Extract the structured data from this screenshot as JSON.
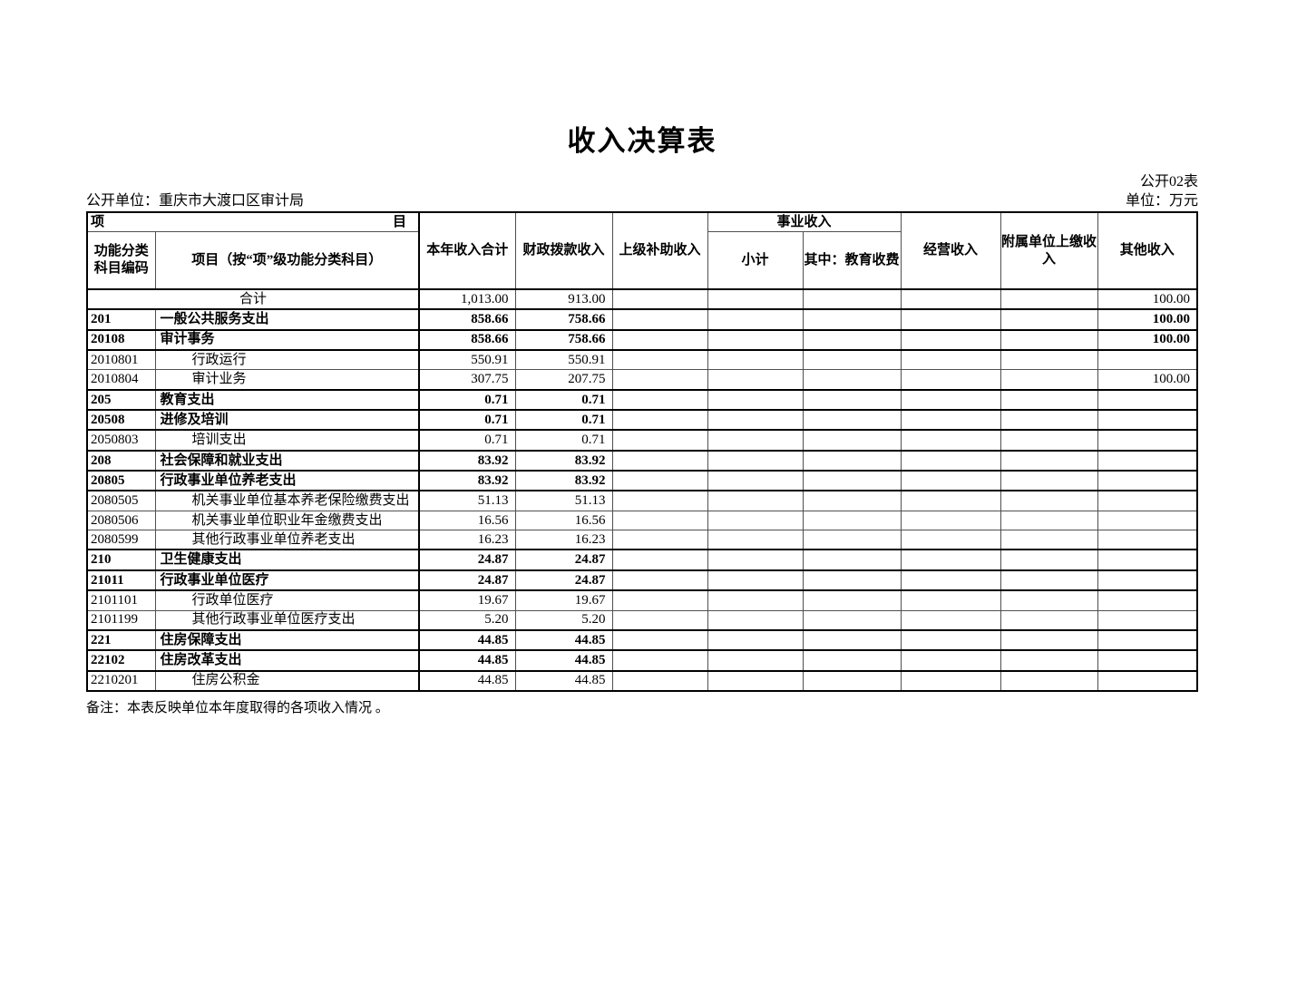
{
  "page": {
    "title": "收入决算表",
    "table_code": "公开02表",
    "publisher": "公开单位：重庆市大渡口区审计局",
    "unit": "单位：万元",
    "note": "备注：本表反映单位本年度取得的各项收入情况 。"
  },
  "table": {
    "header": {
      "item_left": "项",
      "item_right": "目",
      "code": "功能分类科目编码",
      "item_sub": "项目（按“项”级功能分类科目）",
      "annual_total": "本年收入合计",
      "fiscal": "财政拨款收入",
      "superior": "上级补助收入",
      "business_group": "事业收入",
      "subtotal": "小计",
      "education_fee": "其中：教育收费",
      "operating": "经营收入",
      "affiliated": "附属单位上缴收入",
      "other": "其他收入"
    },
    "rows": [
      {
        "code": "",
        "name": "合计",
        "style": "total",
        "values": [
          "1,013.00",
          "913.00",
          "",
          "",
          "",
          "",
          "",
          "100.00"
        ]
      },
      {
        "code": "201",
        "name": "一般公共服务支出",
        "style": "bold",
        "values": [
          "858.66",
          "758.66",
          "",
          "",
          "",
          "",
          "",
          "100.00"
        ]
      },
      {
        "code": "20108",
        "name": "审计事务",
        "style": "bold",
        "values": [
          "858.66",
          "758.66",
          "",
          "",
          "",
          "",
          "",
          "100.00"
        ]
      },
      {
        "code": "2010801",
        "name": "行政运行",
        "style": "detail",
        "values": [
          "550.91",
          "550.91",
          "",
          "",
          "",
          "",
          "",
          ""
        ]
      },
      {
        "code": "2010804",
        "name": "审计业务",
        "style": "detail",
        "values": [
          "307.75",
          "207.75",
          "",
          "",
          "",
          "",
          "",
          "100.00"
        ]
      },
      {
        "code": "205",
        "name": "教育支出",
        "style": "bold",
        "values": [
          "0.71",
          "0.71",
          "",
          "",
          "",
          "",
          "",
          ""
        ]
      },
      {
        "code": "20508",
        "name": "进修及培训",
        "style": "bold",
        "values": [
          "0.71",
          "0.71",
          "",
          "",
          "",
          "",
          "",
          ""
        ]
      },
      {
        "code": "2050803",
        "name": "培训支出",
        "style": "detail",
        "values": [
          "0.71",
          "0.71",
          "",
          "",
          "",
          "",
          "",
          ""
        ]
      },
      {
        "code": "208",
        "name": "社会保障和就业支出",
        "style": "bold",
        "values": [
          "83.92",
          "83.92",
          "",
          "",
          "",
          "",
          "",
          ""
        ]
      },
      {
        "code": "20805",
        "name": "行政事业单位养老支出",
        "style": "bold",
        "values": [
          "83.92",
          "83.92",
          "",
          "",
          "",
          "",
          "",
          ""
        ]
      },
      {
        "code": "2080505",
        "name": "机关事业单位基本养老保险缴费支出",
        "style": "detail",
        "values": [
          "51.13",
          "51.13",
          "",
          "",
          "",
          "",
          "",
          ""
        ]
      },
      {
        "code": "2080506",
        "name": "机关事业单位职业年金缴费支出",
        "style": "detail",
        "values": [
          "16.56",
          "16.56",
          "",
          "",
          "",
          "",
          "",
          ""
        ]
      },
      {
        "code": "2080599",
        "name": "其他行政事业单位养老支出",
        "style": "detail",
        "values": [
          "16.23",
          "16.23",
          "",
          "",
          "",
          "",
          "",
          ""
        ]
      },
      {
        "code": "210",
        "name": "卫生健康支出",
        "style": "bold",
        "values": [
          "24.87",
          "24.87",
          "",
          "",
          "",
          "",
          "",
          ""
        ]
      },
      {
        "code": "21011",
        "name": "行政事业单位医疗",
        "style": "bold",
        "values": [
          "24.87",
          "24.87",
          "",
          "",
          "",
          "",
          "",
          ""
        ]
      },
      {
        "code": "2101101",
        "name": "行政单位医疗",
        "style": "detail",
        "values": [
          "19.67",
          "19.67",
          "",
          "",
          "",
          "",
          "",
          ""
        ]
      },
      {
        "code": "2101199",
        "name": "其他行政事业单位医疗支出",
        "style": "detail",
        "values": [
          "5.20",
          "5.20",
          "",
          "",
          "",
          "",
          "",
          ""
        ]
      },
      {
        "code": "221",
        "name": "住房保障支出",
        "style": "bold",
        "values": [
          "44.85",
          "44.85",
          "",
          "",
          "",
          "",
          "",
          ""
        ]
      },
      {
        "code": "22102",
        "name": "住房改革支出",
        "style": "bold",
        "values": [
          "44.85",
          "44.85",
          "",
          "",
          "",
          "",
          "",
          ""
        ]
      },
      {
        "code": "2210201",
        "name": "住房公积金",
        "style": "detail",
        "values": [
          "44.85",
          "44.85",
          "",
          "",
          "",
          "",
          "",
          ""
        ]
      }
    ]
  }
}
